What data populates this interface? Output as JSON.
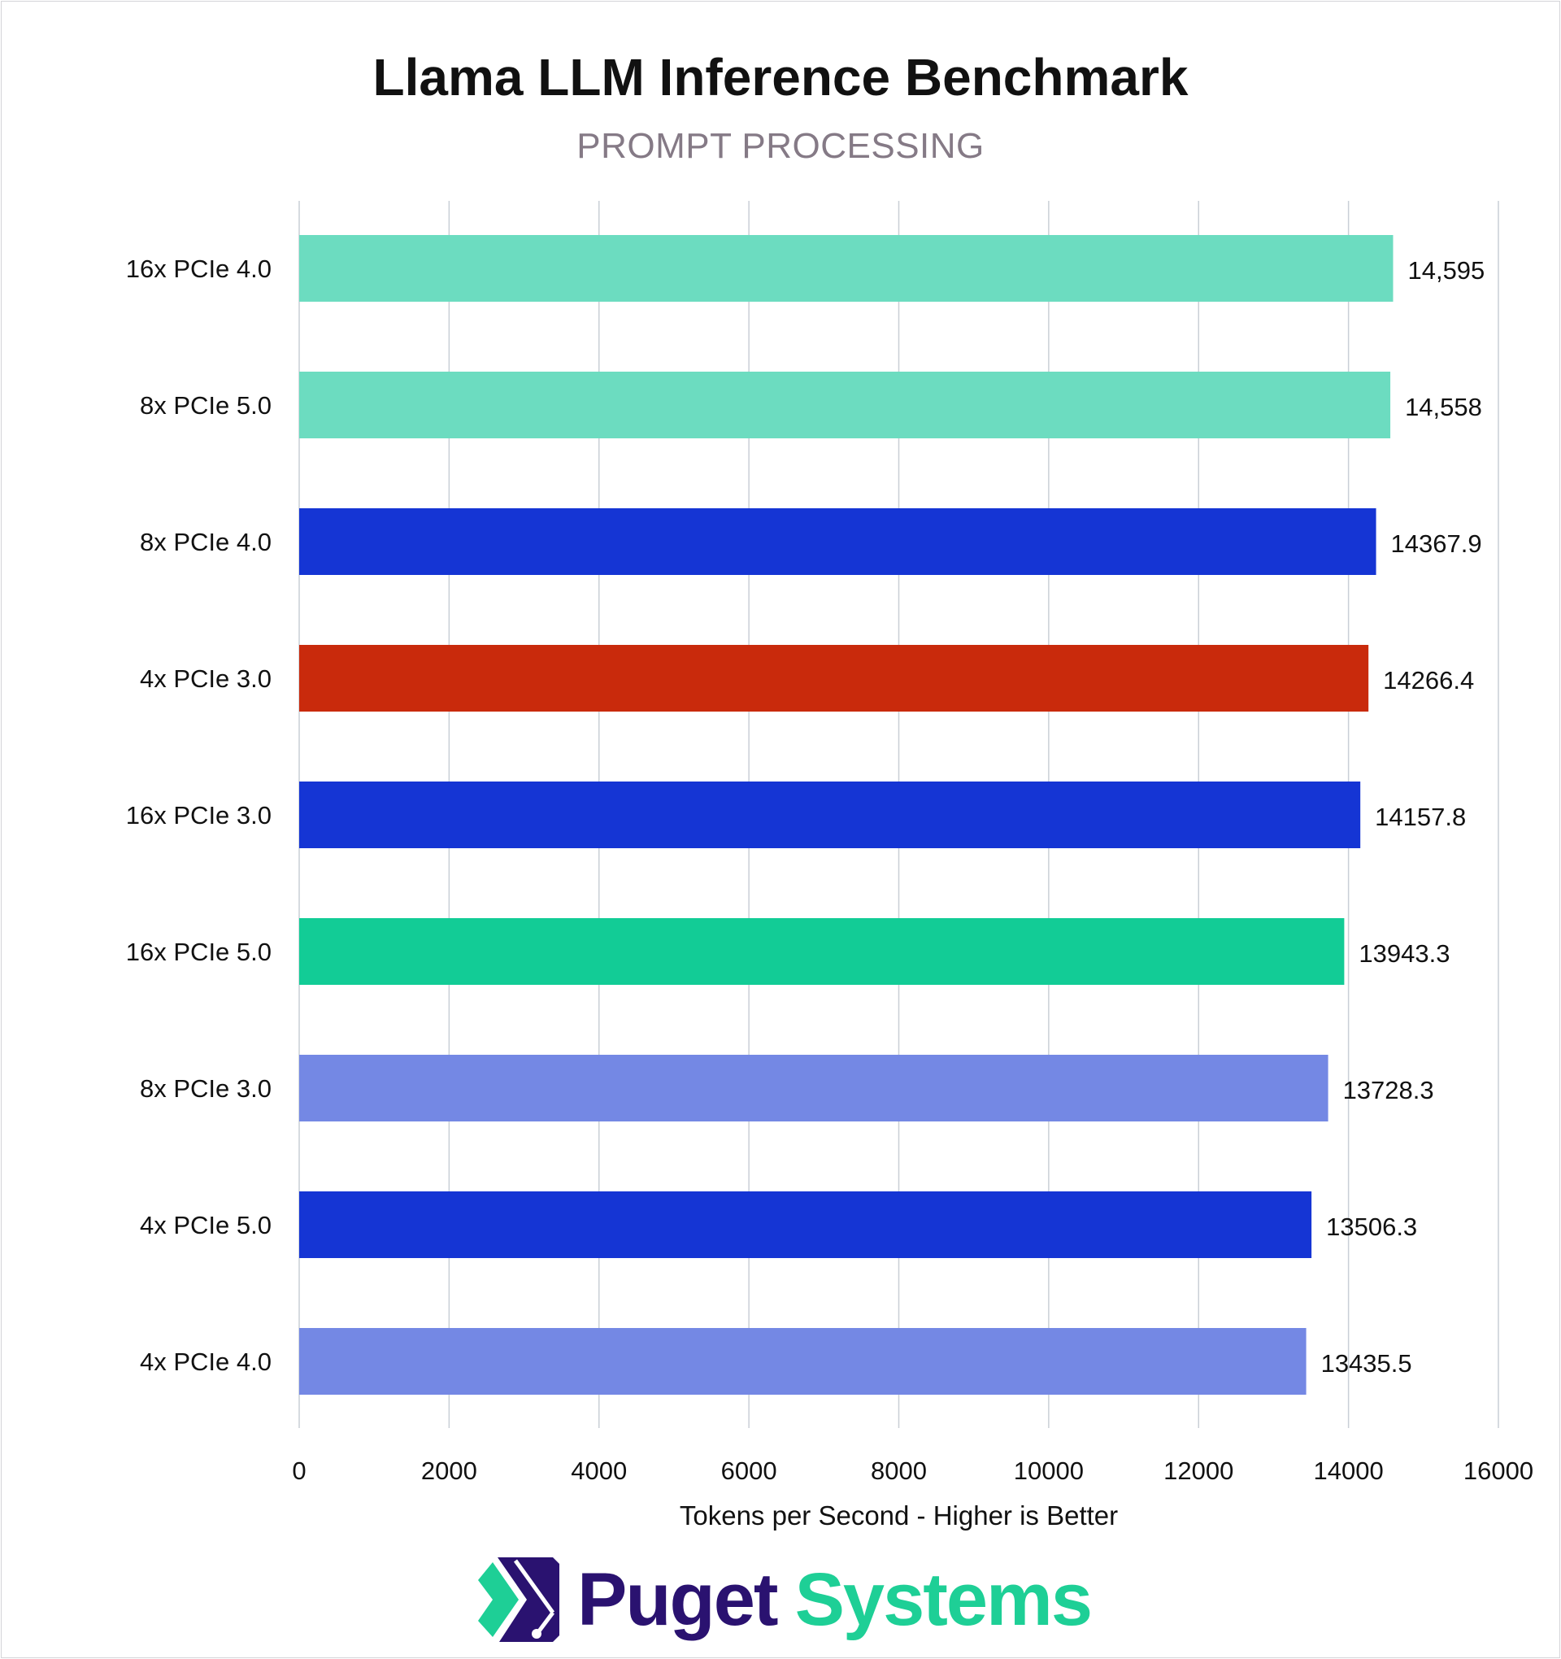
{
  "chart_data": {
    "type": "bar",
    "orientation": "horizontal",
    "title": "Llama LLM Inference Benchmark",
    "subtitle": "PROMPT PROCESSING",
    "xlabel": "Tokens per Second - Higher is Better",
    "ylabel": "",
    "xlim": [
      0,
      16000
    ],
    "xticks": [
      "0",
      "2000",
      "4000",
      "6000",
      "8000",
      "10000",
      "12000",
      "14000",
      "16000"
    ],
    "grid": "vertical",
    "categories": [
      "16x PCIe 4.0",
      "8x PCIe 5.0",
      "8x PCIe 4.0",
      "4x PCIe 3.0",
      "16x PCIe 3.0",
      "16x PCIe 5.0",
      "8x PCIe 3.0",
      "4x PCIe 5.0",
      "4x PCIe 4.0"
    ],
    "values": [
      14595,
      14558,
      14367.9,
      14266.4,
      14157.8,
      13943.3,
      13728.3,
      13506.3,
      13435.5
    ],
    "value_labels": [
      "14,595",
      "14,558",
      "14367.9",
      "14266.4",
      "14157.8",
      "13943.3",
      "13728.3",
      "13506.3",
      "13435.5"
    ],
    "colors": [
      "#6cdcc0",
      "#6cdcc0",
      "#1535d4",
      "#c92a0c",
      "#1535d4",
      "#12cc96",
      "#7488e4",
      "#1535d4",
      "#7488e4"
    ]
  },
  "logo": {
    "word1": "Puget",
    "word2": "Systems",
    "navy": "#2a1270",
    "green": "#1ecf96"
  }
}
